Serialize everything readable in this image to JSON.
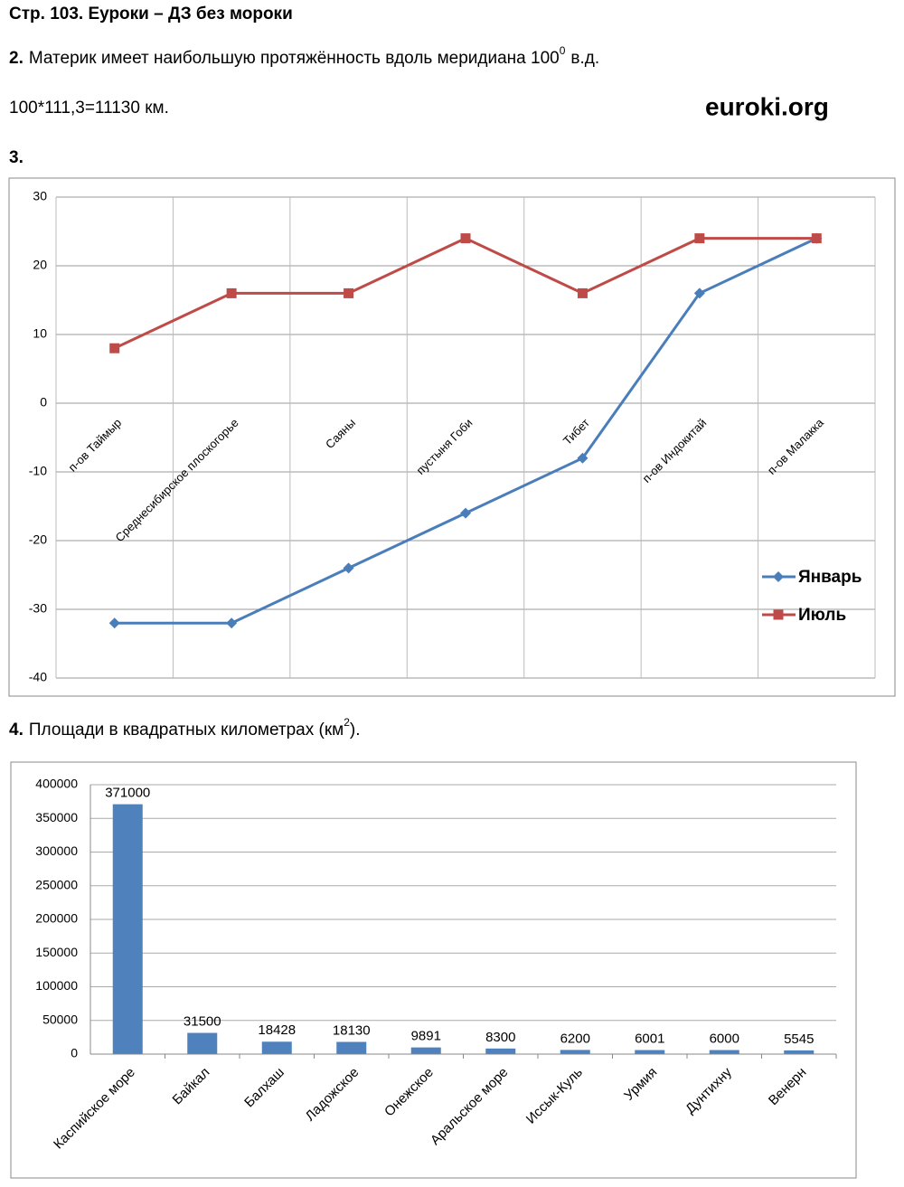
{
  "header": {
    "title": "Стр. 103. Еуроки – ДЗ без мороки"
  },
  "site": "euroki.org",
  "task2": {
    "number": "2.",
    "text": "Материк имеет наибольшую протяжённость вдоль меридиана 100",
    "sup": "0",
    "text_after": "в.д.",
    "calc": "100*111,3=11130 км."
  },
  "task3": {
    "number": "3."
  },
  "task4": {
    "number": "4.",
    "text": "Площади в квадратных километрах (км",
    "sup": "2",
    "text_after": ")."
  },
  "chart_data": [
    {
      "type": "line",
      "categories": [
        "п-ов Таймыр",
        "Среднесибирское плоскогорье",
        "Саяны",
        "пустыня Гоби",
        "Тибет",
        "п-ов Индокитай",
        "п-ов Малакка"
      ],
      "series": [
        {
          "name": "Январь",
          "color": "#4a7ebb",
          "marker": "diamond",
          "values": [
            -32,
            -32,
            -24,
            -16,
            -8,
            16,
            24
          ]
        },
        {
          "name": "Июль",
          "color": "#be4b48",
          "marker": "square",
          "values": [
            8,
            16,
            16,
            24,
            16,
            24,
            24
          ]
        }
      ],
      "ylim": [
        -40,
        30
      ],
      "yticks": [
        -40,
        -30,
        -20,
        -10,
        0,
        10,
        20,
        30
      ],
      "grid": true,
      "legend": "right"
    },
    {
      "type": "bar",
      "categories": [
        "Каспийское море",
        "Байкал",
        "Балхаш",
        "Ладожское",
        "Онежское",
        "Аральское море",
        "Иссык-Куль",
        "Урмия",
        "Дунтихну",
        "Венерн"
      ],
      "values": [
        371000,
        31500,
        18428,
        18130,
        9891,
        8300,
        6200,
        6001,
        6000,
        5545
      ],
      "color": "#4f81bd",
      "show_values": true,
      "ylim": [
        0,
        400000
      ],
      "yticks": [
        0,
        50000,
        100000,
        150000,
        200000,
        250000,
        300000,
        350000,
        400000
      ],
      "grid": true
    }
  ]
}
